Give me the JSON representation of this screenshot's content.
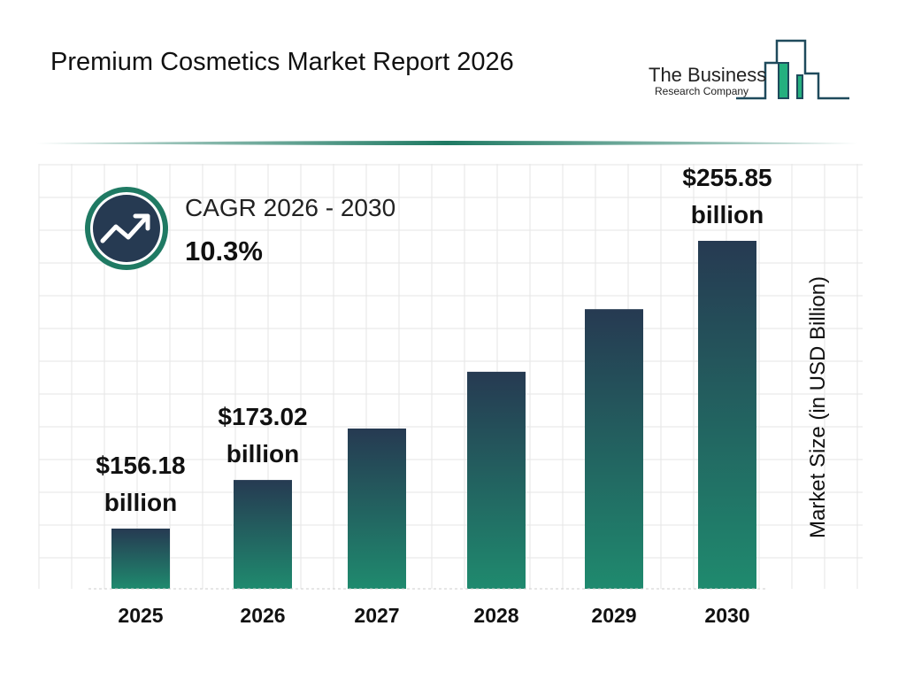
{
  "header": {
    "title": "Premium Cosmetics Market Report 2026"
  },
  "logo": {
    "line1": "The Business",
    "line2": "Research Company"
  },
  "cagr": {
    "label": "CAGR 2026 - 2030",
    "value": "10.3%",
    "icon": "trending-up-icon"
  },
  "colors": {
    "bar_top": "#263a52",
    "bar_bottom": "#1f8a6e",
    "accent": "#1f7a63",
    "icon_bg": "#263a52"
  },
  "chart_data": {
    "type": "bar",
    "title": "Premium Cosmetics Market Report 2026",
    "ylabel": "Market Size (in USD Billion)",
    "xlabel": "",
    "categories": [
      "2025",
      "2026",
      "2027",
      "2028",
      "2029",
      "2030"
    ],
    "values": [
      156.18,
      173.02,
      190.84,
      210.5,
      232.18,
      255.85
    ],
    "data_labels": [
      {
        "index": 0,
        "line1": "$156.18",
        "line2": "billion"
      },
      {
        "index": 1,
        "line1": "$173.02",
        "line2": "billion"
      },
      {
        "index": 5,
        "line1": "$255.85",
        "line2": "billion"
      }
    ],
    "grid": true
  }
}
